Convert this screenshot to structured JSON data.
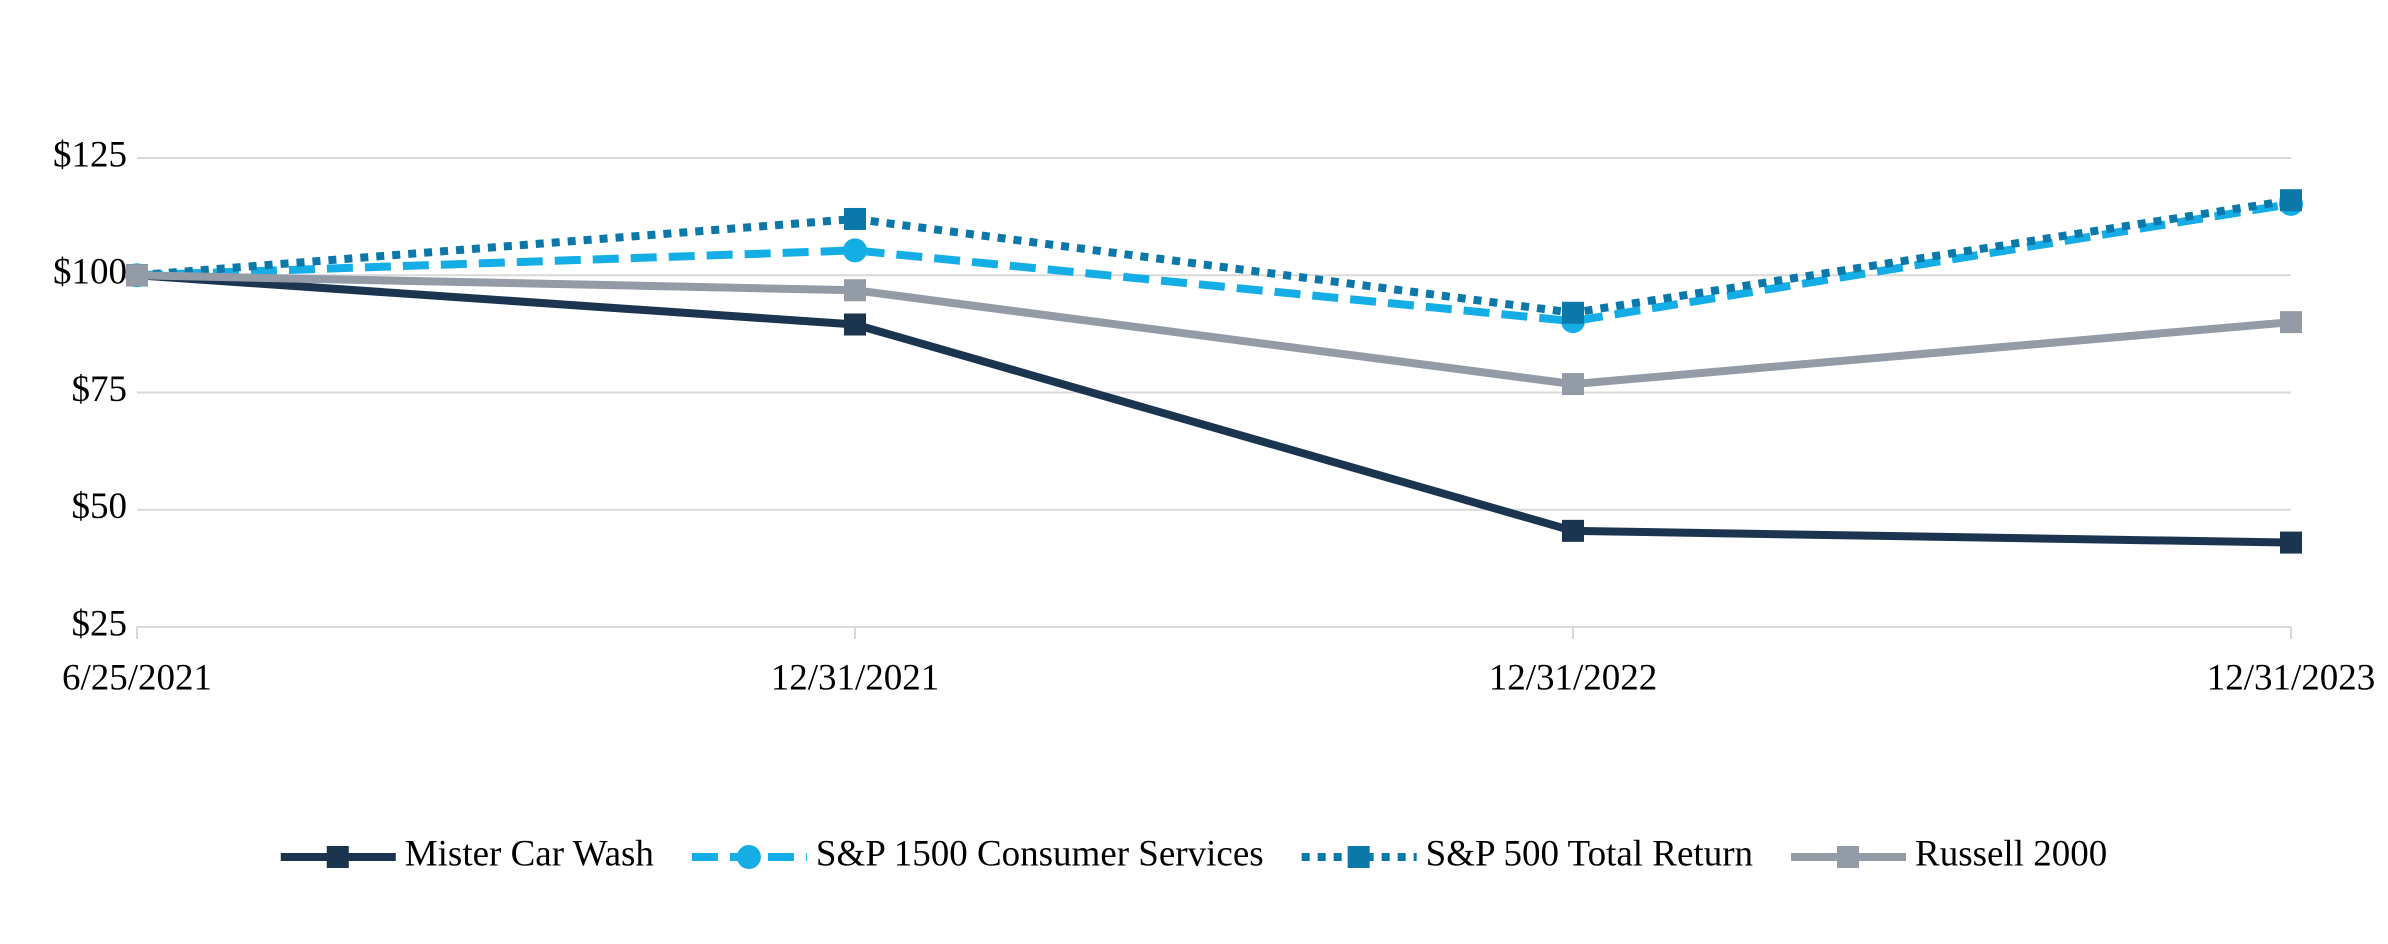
{
  "chart_data": {
    "type": "line",
    "categories": [
      "6/25/2021",
      "12/31/2021",
      "12/31/2022",
      "12/31/2023"
    ],
    "series": [
      {
        "name": "Mister Car Wash",
        "color": "#1b3550",
        "dash": "solid",
        "marker": "square",
        "values": [
          100,
          89.5,
          45.5,
          43
        ]
      },
      {
        "name": "S&P 1500 Consumer Services",
        "color": "#14ade6",
        "dash": "dashed",
        "marker": "circle",
        "values": [
          100,
          105.3,
          90.2,
          115.2
        ]
      },
      {
        "name": "S&P 500 Total Return",
        "color": "#0c77a9",
        "dash": "dotted",
        "marker": "square",
        "values": [
          100,
          112,
          92,
          116
        ]
      },
      {
        "name": "Russell 2000",
        "color": "#939ba6",
        "dash": "solid",
        "marker": "square",
        "values": [
          100,
          96.8,
          76.8,
          90
        ]
      }
    ],
    "ylim": [
      25,
      125
    ],
    "yticks": [
      {
        "value": 25,
        "label": "$25"
      },
      {
        "value": 50,
        "label": "$50"
      },
      {
        "value": 75,
        "label": "$75"
      },
      {
        "value": 100,
        "label": "$100"
      },
      {
        "value": 125,
        "label": "$125"
      }
    ],
    "grid": true,
    "legend": "bottom"
  }
}
